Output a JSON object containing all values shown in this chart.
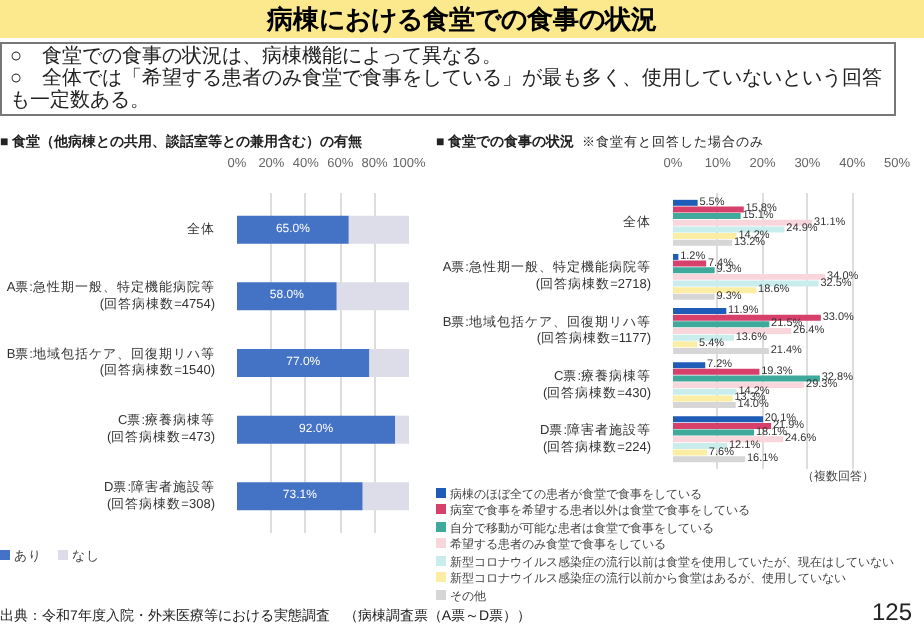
{
  "chart_data": [
    {
      "type": "bar",
      "orientation": "horizontal",
      "stacked": true,
      "title": "病棟における食堂での食事の状況",
      "subtitle": "■ 食堂（他病棟との共用、談話室等との兼用含む）の有無",
      "annotations": [
        "○　食堂での食事の状況は、病棟機能によって異なる。",
        "○　全体では「希望する患者のみ食堂で食事をしている」が最も多く、使用していないという回答も一定数ある。",
        "出典：令和7年度入院・外来医療等における実態調査　（病棟調査票（A票～D票））"
      ],
      "categories": [
        "全体",
        "A票:急性期一般、特定機能病院等\n(回答病棟数=4754)",
        "B票:地域包括ケア、回復期リハ等\n(回答病棟数=1540)",
        "C票:療養病棟等\n(回答病棟数=473)",
        "D票:障害者施設等\n(回答病棟数=308)"
      ],
      "series": [
        {
          "name": "あり",
          "color": "#4472c4",
          "values": [
            65.0,
            58.0,
            77.0,
            92.0,
            73.1
          ],
          "value_labels": [
            "65.0%",
            "58.0%",
            "77.0%",
            "92.0%",
            "73.1%"
          ]
        },
        {
          "name": "なし",
          "color": "#dddde9",
          "values": [
            35,
            42,
            23,
            8,
            27
          ]
        }
      ],
      "xlim": [
        0,
        100
      ],
      "xticks": [
        {
          "value": 0,
          "label": "0%"
        },
        {
          "value": 20,
          "label": "20%"
        },
        {
          "value": 40,
          "label": "40%"
        },
        {
          "value": 60,
          "label": "60%"
        },
        {
          "value": 80,
          "label": "80%"
        },
        {
          "value": 100,
          "label": "100%"
        }
      ],
      "grid": "x",
      "legend": "bottom"
    },
    {
      "type": "bar",
      "orientation": "horizontal",
      "title": "■ 食堂での食事の状況",
      "subtitle": "※食堂有と回答した場合のみ",
      "annotations": [
        "（複数回答）",
        "125"
      ],
      "categories": [
        "全体",
        "A票:急性期一般、特定機能病院等\n(回答病棟数=2718)",
        "B票:地域包括ケア、回復期リハ等\n(回答病棟数=1177)",
        "C票:療養病棟等\n(回答病棟数=430)",
        "D票:障害者施設等\n(回答病棟数=224)"
      ],
      "series": [
        {
          "name": "病棟のほぼ全ての患者が食堂で食事をしている",
          "color": "#1f5cb8",
          "values": [
            5.5,
            1.2,
            11.9,
            7.2,
            20.1
          ],
          "value_labels": [
            "5.5%",
            "1.2%",
            "11.9%",
            "7.2%",
            "20.1%"
          ]
        },
        {
          "name": "病室で食事を希望する患者以外は食堂で食事をしている",
          "color": "#d6406a",
          "values": [
            15.8,
            7.4,
            33.0,
            19.3,
            21.9
          ],
          "value_labels": [
            "15.8%",
            "7.4%",
            "33.0%",
            "19.3%",
            "21.9%"
          ]
        },
        {
          "name": "自分で移動が可能な患者は食堂で食事をしている",
          "color": "#3fa99b",
          "values": [
            15.1,
            9.3,
            21.5,
            32.8,
            18.1
          ],
          "value_labels": [
            "15.1%",
            "9.3%",
            "21.5%",
            "32.8%",
            "18.1%"
          ]
        },
        {
          "name": "希望する患者のみ食堂で食事をしている",
          "color": "#f8d6db",
          "values": [
            31.1,
            34.0,
            26.4,
            29.3,
            24.6
          ],
          "value_labels": [
            "31.1%",
            "34.0%",
            "26.4%",
            "29.3%",
            "24.6%"
          ]
        },
        {
          "name": "新型コロナウイルス感染症の流行以前は食堂を使用していたが、現在はしていない",
          "color": "#c9ecec",
          "values": [
            24.9,
            32.5,
            13.6,
            14.2,
            12.1
          ],
          "value_labels": [
            "24.9%",
            "32.5%",
            "13.6%",
            "14.2%",
            "12.1%"
          ]
        },
        {
          "name": "新型コロナウイルス感染症の流行以前から食堂はあるが、使用していない",
          "color": "#fbeea4",
          "values": [
            14.2,
            18.6,
            5.4,
            13.3,
            7.6
          ],
          "value_labels": [
            "14.2%",
            "18.6%",
            "5.4%",
            "13.3%",
            "7.6%"
          ]
        },
        {
          "name": "その他",
          "color": "#d6d6d6",
          "values": [
            13.2,
            9.3,
            21.4,
            14.0,
            16.1
          ],
          "value_labels": [
            "13.2%",
            "9.3%",
            "21.4%",
            "14.0%",
            "16.1%"
          ]
        }
      ],
      "xlim": [
        0,
        50
      ],
      "xticks": [
        {
          "value": 0,
          "label": "0%"
        },
        {
          "value": 10,
          "label": "10%"
        },
        {
          "value": 20,
          "label": "20%"
        },
        {
          "value": 30,
          "label": "30%"
        },
        {
          "value": 40,
          "label": "40%"
        },
        {
          "value": 50,
          "label": "50%"
        }
      ],
      "grid": "x",
      "legend": "bottom"
    }
  ]
}
